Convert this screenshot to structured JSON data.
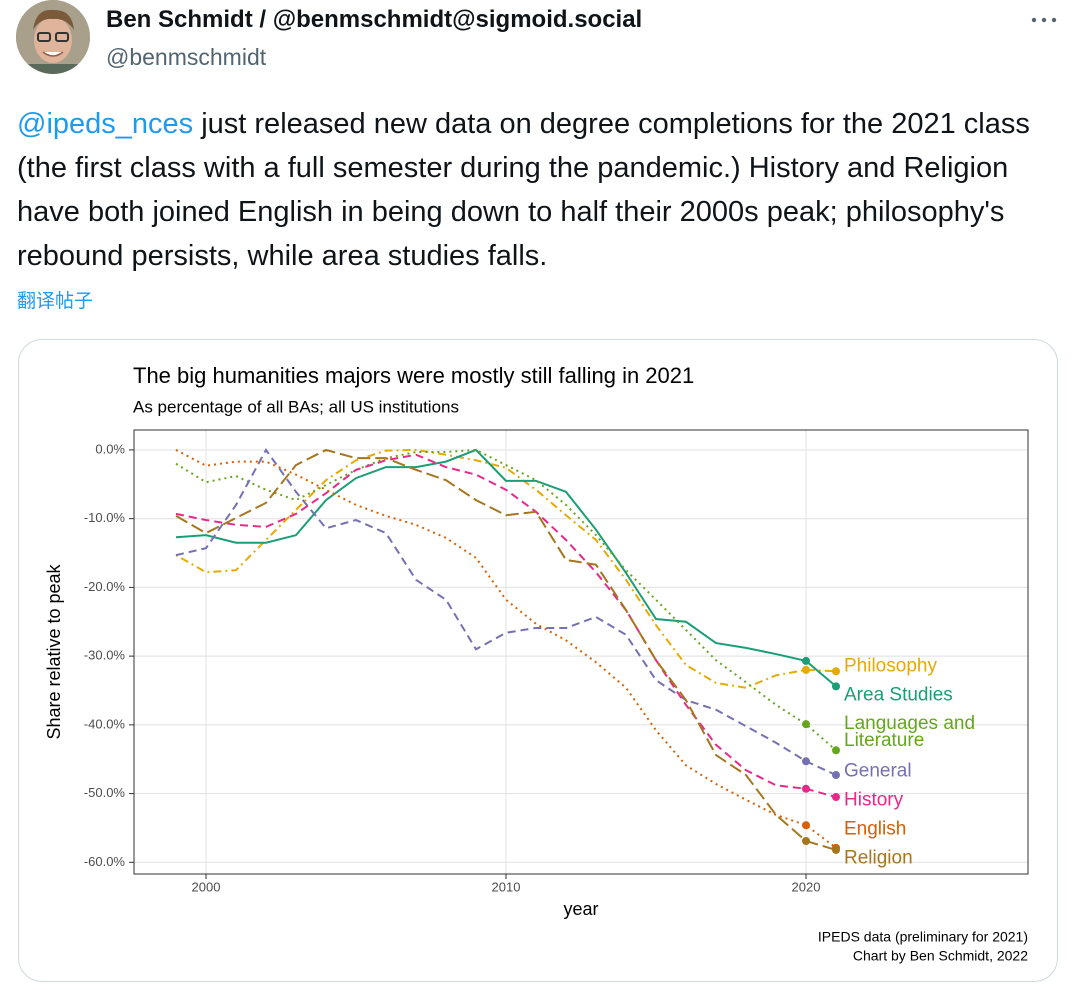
{
  "post": {
    "author_name": "Ben Schmidt / @benmschmidt@sigmoid.social",
    "handle": "@benmschmidt",
    "mention": "@ipeds_nces",
    "text": "just released new data on degree completions for the 2021 class (the first class with a full semester during the pandemic.) History and Religion have both joined English in being down to half their 2000s peak; philosophy's rebound persists, while area studies falls.",
    "translate": "翻译帖子"
  },
  "chart_data": {
    "type": "line",
    "title": "The big humanities majors were mostly still falling in 2021",
    "subtitle": "As percentage of all BAs; all US institutions",
    "x_label": "year",
    "y_label": "Share relative to peak",
    "caption": [
      "IPEDS data (preliminary for 2021)",
      "Chart by Ben Schmidt, 2022"
    ],
    "x": [
      1999,
      2000,
      2001,
      2002,
      2003,
      2004,
      2005,
      2006,
      2007,
      2008,
      2009,
      2010,
      2011,
      2012,
      2013,
      2014,
      2015,
      2016,
      2017,
      2018,
      2019,
      2020,
      2021
    ],
    "xlim": [
      1997.6,
      2027.4
    ],
    "xticks": [
      2000,
      2010,
      2020
    ],
    "ylim": [
      -61.7,
      2.9
    ],
    "yticks": [
      {
        "value": 0,
        "label": "0.0%"
      },
      {
        "value": -10,
        "label": "-10.0%"
      },
      {
        "value": -20,
        "label": "-20.0%"
      },
      {
        "value": -30,
        "label": "-30.0%"
      },
      {
        "value": -40,
        "label": "-40.0%"
      },
      {
        "value": -50,
        "label": "-50.0%"
      },
      {
        "value": -60,
        "label": "-60.0%"
      }
    ],
    "grid": true,
    "series": [
      {
        "name": "Philosophy",
        "color": "#e6ab02",
        "line_style": "dotdash",
        "values": [
          -15.3,
          -17.8,
          -17.5,
          -13.1,
          -8.7,
          -4.4,
          -1.5,
          -0.1,
          0,
          -0.7,
          -1.5,
          -2.6,
          -5.8,
          -9.5,
          -13.1,
          -18.9,
          -25.5,
          -31.3,
          -33.9,
          -34.6,
          -32.8,
          -32,
          -32.2
        ]
      },
      {
        "name": "Area Studies",
        "color": "#1b9e77",
        "line_style": "solid",
        "values": [
          -12.7,
          -12.4,
          -13.5,
          -13.5,
          -12.4,
          -7.3,
          -4.1,
          -2.5,
          -2.5,
          -1.7,
          0,
          -4.5,
          -4.5,
          -6.1,
          -11.6,
          -17.9,
          -24.6,
          -25,
          -28.1,
          -28.8,
          -29.7,
          -30.7,
          -34.4
        ]
      },
      {
        "name": "Languages and Literature",
        "color": "#66a61e",
        "line_style": "dotted",
        "values": [
          -2,
          -4.7,
          -3.8,
          -5.8,
          -7.3,
          -5.1,
          -2.9,
          -1.2,
          -0.3,
          -0.3,
          0,
          -2.2,
          -4.4,
          -8,
          -12.4,
          -17.5,
          -21.8,
          -26.2,
          -30.6,
          -33.8,
          -37.1,
          -39.9,
          -43.7
        ]
      },
      {
        "name": "General",
        "color": "#7570b3",
        "line_style": "dashed",
        "values": [
          -15.3,
          -14.3,
          -8,
          0,
          -6.1,
          -11.4,
          -10.2,
          -12.1,
          -18.9,
          -21.8,
          -29,
          -26.6,
          -25.9,
          -25.9,
          -24.3,
          -26.9,
          -33.5,
          -36.4,
          -37.8,
          -40.2,
          -42.6,
          -45.3,
          -47.3
        ]
      },
      {
        "name": "History",
        "color": "#e7298a",
        "line_style": "dashed",
        "values": [
          -9.3,
          -10.2,
          -10.9,
          -11.2,
          -9.3,
          -6.3,
          -2.9,
          -1.5,
          -0.7,
          -2.5,
          -3.6,
          -5.8,
          -9,
          -13.1,
          -17.8,
          -23.3,
          -30.6,
          -37.1,
          -42.9,
          -46.6,
          -48.8,
          -49.3,
          -50.5
        ]
      },
      {
        "name": "English",
        "color": "#d95f02",
        "line_style": "dotted",
        "values": [
          0,
          -2.3,
          -1.7,
          -1.7,
          -3.6,
          -5.8,
          -8,
          -9.6,
          -10.9,
          -12.8,
          -15.7,
          -21.8,
          -25.3,
          -27.7,
          -30.9,
          -34.6,
          -40.8,
          -45.9,
          -48.6,
          -50.9,
          -53.1,
          -54.6,
          -57.9
        ]
      },
      {
        "name": "Religion",
        "color": "#a6761d",
        "line_style": "longdash",
        "values": [
          -9.6,
          -12.1,
          -9.9,
          -7.7,
          -2.2,
          0,
          -1.2,
          -1.2,
          -2.9,
          -4.4,
          -7.3,
          -9.5,
          -9,
          -16,
          -16.7,
          -23.3,
          -30.6,
          -36.4,
          -44.4,
          -47.3,
          -53.1,
          -56.9,
          -58.2
        ]
      }
    ]
  }
}
